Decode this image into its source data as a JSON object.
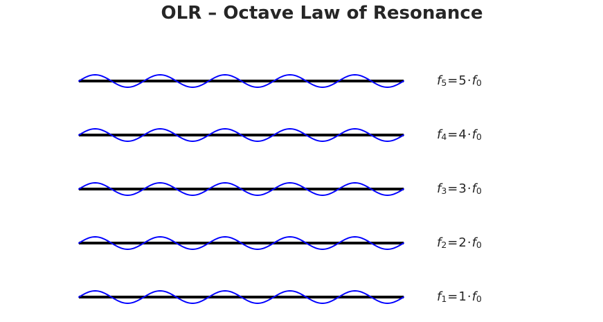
{
  "title": "OLR – Octave Law of Resonance",
  "colors": {
    "background": "#ffffff",
    "string": "#000000",
    "wave": "#0000ff",
    "text": "#262626"
  },
  "figure": {
    "description": "Five horizontal black strings, each overlaid with a blue sine wave showing 5 full cycles; rows labeled from top to bottom as the 5th to 1st harmonic of f0",
    "wave_cycles_drawn": 5,
    "rows": [
      {
        "harmonic": "5",
        "base_symbol": "f",
        "equals": "=",
        "coefficient": "5",
        "dot": "·",
        "base_symbol_2": "f",
        "sub_zero": "0",
        "label_text": "f5=5·f0"
      },
      {
        "harmonic": "4",
        "base_symbol": "f",
        "equals": "=",
        "coefficient": "4",
        "dot": "·",
        "base_symbol_2": "f",
        "sub_zero": "0",
        "label_text": "f4=4·f0"
      },
      {
        "harmonic": "3",
        "base_symbol": "f",
        "equals": "=",
        "coefficient": "3",
        "dot": "·",
        "base_symbol_2": "f",
        "sub_zero": "0",
        "label_text": "f3=3·f0"
      },
      {
        "harmonic": "2",
        "base_symbol": "f",
        "equals": "=",
        "coefficient": "2",
        "dot": "·",
        "base_symbol_2": "f",
        "sub_zero": "0",
        "label_text": "f2=2·f0"
      },
      {
        "harmonic": "1",
        "base_symbol": "f",
        "equals": "=",
        "coefficient": "1",
        "dot": "·",
        "base_symbol_2": "f",
        "sub_zero": "0",
        "label_text": "f1=1·f0"
      }
    ]
  }
}
